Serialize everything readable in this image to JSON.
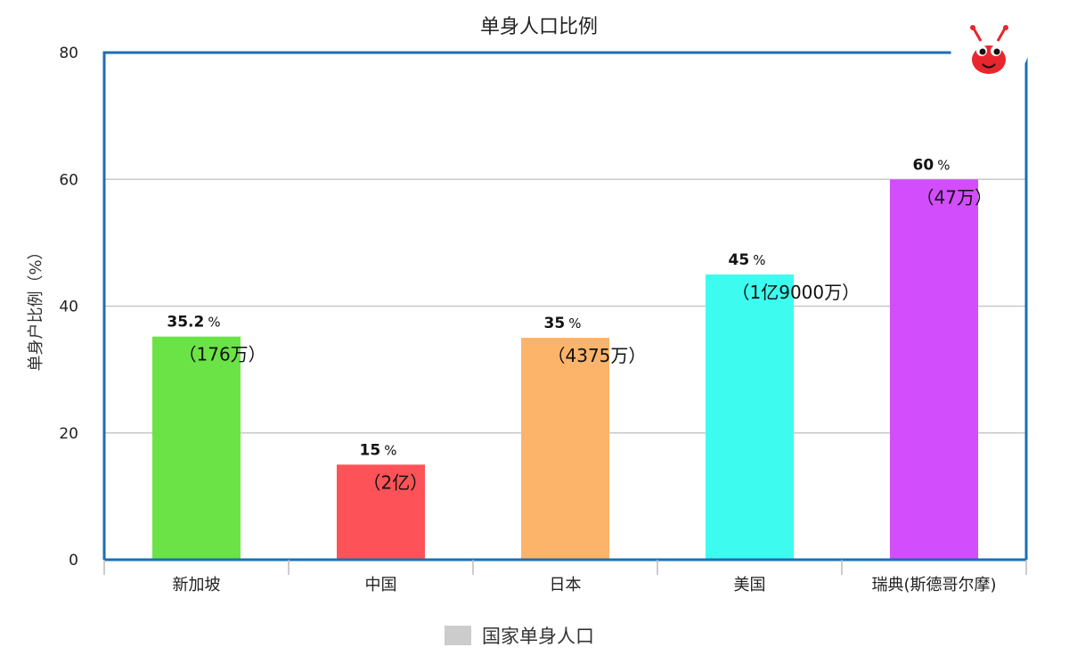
{
  "chart_data": {
    "type": "bar",
    "title": "单身人口比例",
    "ylabel": "单身户比例（%）",
    "xlabel": "",
    "ylim": [
      0,
      80
    ],
    "yticks": [
      0,
      20,
      40,
      60,
      80
    ],
    "grid": true,
    "legend_position": "bottom",
    "categories": [
      "新加坡",
      "中国",
      "日本",
      "美国",
      "瑞典(斯德哥尔摩)"
    ],
    "series": [
      {
        "name": "国家单身人口",
        "values": [
          35.2,
          15,
          35,
          45,
          60
        ],
        "value_labels": [
          "35.2",
          "15",
          "35",
          "45",
          "60"
        ],
        "value_suffix": "%",
        "notes": [
          "（176万）",
          "（2亿）",
          "（4375万）",
          "（1亿9000万）",
          "（47万）"
        ],
        "colors": [
          "#6be346",
          "#fd5257",
          "#fcb36a",
          "#3dfcef",
          "#d24dfc"
        ]
      }
    ],
    "legend_color": "#cccccc",
    "frame_color": "#1a6fb5",
    "grid_color": "#c8c8c8"
  },
  "logo": {
    "name": "ant-mascot-icon",
    "body_color": "#e8262d"
  }
}
